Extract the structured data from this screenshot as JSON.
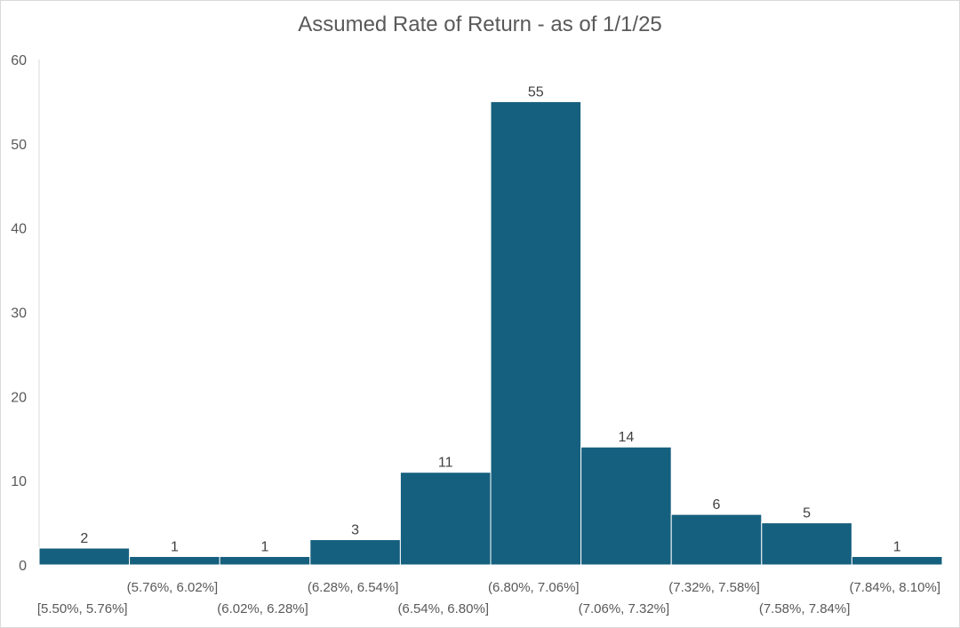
{
  "chart_data": {
    "type": "bar",
    "title": "Assumed Rate of Return - as of 1/1/25",
    "xlabel": "",
    "ylabel": "",
    "ylim": [
      0,
      60
    ],
    "yticks": [
      0,
      10,
      20,
      30,
      40,
      50,
      60
    ],
    "grid": false,
    "categories": [
      "[5.50%, 5.76%]",
      "(5.76%, 6.02%]",
      "(6.02%, 6.28%]",
      "(6.28%, 6.54%]",
      "(6.54%, 6.80%]",
      "(6.80%, 7.06%]",
      "(7.06%, 7.32%]",
      "(7.32%, 7.58%]",
      "(7.58%, 7.84%]",
      "(7.84%, 8.10%]"
    ],
    "values": [
      2,
      1,
      1,
      3,
      11,
      55,
      14,
      6,
      5,
      1
    ],
    "colors": {
      "bar": "#16607f",
      "bar_edge": "#ffffff",
      "axis": "#d9d9d9"
    }
  }
}
